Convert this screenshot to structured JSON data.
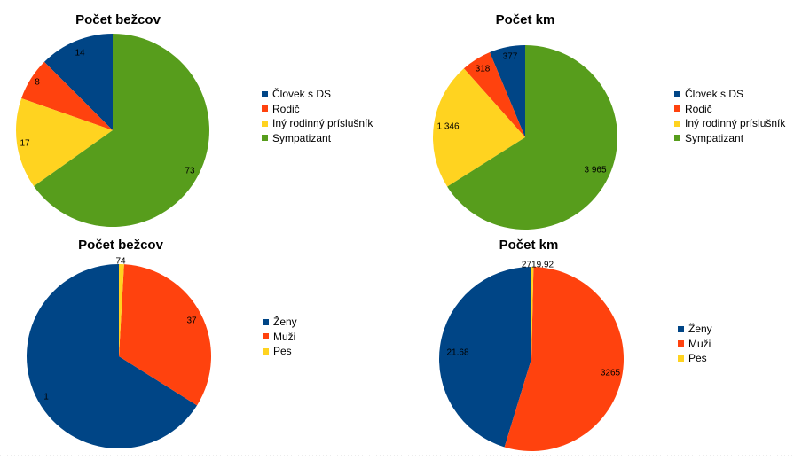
{
  "colors": {
    "blue": "#004586",
    "red": "#ff420e",
    "yellow": "#ffd320",
    "green": "#579d1c"
  },
  "chart_data": [
    {
      "type": "pie",
      "title": "Počet bežcov",
      "categories": [
        "Človek s DS",
        "Rodič",
        "Iný rodinný príslušník",
        "Sympatizant"
      ],
      "values": [
        14,
        8,
        17,
        73
      ],
      "value_labels": [
        "14",
        "8",
        "17",
        "73"
      ],
      "colors": [
        "#004586",
        "#ff420e",
        "#ffd320",
        "#579d1c"
      ],
      "legend": "right"
    },
    {
      "type": "pie",
      "title": "Počet km",
      "categories": [
        "Človek s DS",
        "Rodič",
        "Iný rodinný príslušník",
        "Sympatizant"
      ],
      "values": [
        377,
        318,
        1346,
        3965
      ],
      "value_labels": [
        "377",
        "318",
        "1 346",
        "3 965"
      ],
      "colors": [
        "#004586",
        "#ff420e",
        "#ffd320",
        "#579d1c"
      ],
      "legend": "right"
    },
    {
      "type": "pie",
      "title": "Počet bežcov",
      "categories": [
        "Ženy",
        "Muži",
        "Pes"
      ],
      "values": [
        74,
        37,
        1
      ],
      "value_labels": [
        "74",
        "37",
        "1"
      ],
      "colors": [
        "#004586",
        "#ff420e",
        "#ffd320"
      ],
      "legend": "right"
    },
    {
      "type": "pie",
      "title": "Počet km",
      "categories": [
        "Ženy",
        "Muži",
        "Pes"
      ],
      "values": [
        2719.92,
        3265,
        21.68
      ],
      "value_labels": [
        "2719.92",
        "3265",
        "21.68"
      ],
      "colors": [
        "#004586",
        "#ff420e",
        "#ffd320"
      ],
      "legend": "right"
    }
  ]
}
